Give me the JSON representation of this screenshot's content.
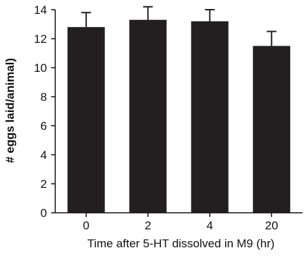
{
  "chart_data": {
    "type": "bar",
    "categories": [
      "0",
      "2",
      "4",
      "20"
    ],
    "values": [
      12.8,
      13.3,
      13.2,
      11.5
    ],
    "errors": [
      1.0,
      0.9,
      0.8,
      1.0
    ],
    "xlabel": "Time after 5-HT dissolved in M9 (hr)",
    "ylabel": "# eggs laid/animal)",
    "ylim": [
      0,
      14
    ],
    "yticks": [
      0,
      2,
      4,
      6,
      8,
      10,
      12,
      14
    ],
    "bar_color": "#231f20",
    "grid": false,
    "legend": "none"
  }
}
